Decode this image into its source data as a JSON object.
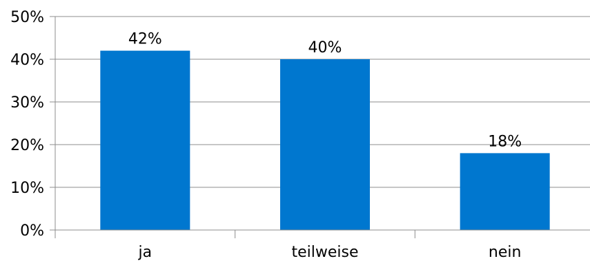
{
  "chart_data": {
    "type": "bar",
    "categories": [
      "ja",
      "teilweise",
      "nein"
    ],
    "values": [
      42,
      40,
      18
    ],
    "data_labels": [
      "42%",
      "40%",
      "18%"
    ],
    "ylim": [
      0,
      50
    ],
    "yticks": [
      0,
      10,
      20,
      30,
      40,
      50
    ],
    "ytick_labels": [
      "0%",
      "10%",
      "20%",
      "30%",
      "40%",
      "50%"
    ],
    "grid": true,
    "legend": "none",
    "bar_color": "#0077CF",
    "title": "",
    "xlabel": "",
    "ylabel": ""
  }
}
